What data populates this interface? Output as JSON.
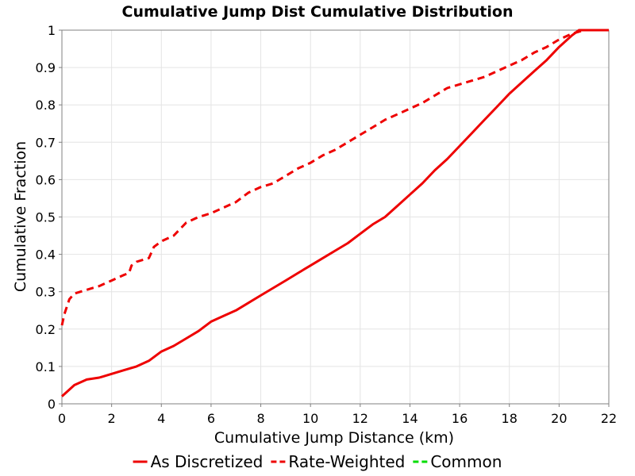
{
  "chart_data": {
    "type": "line",
    "title": "Cumulative Jump Dist Cumulative Distribution",
    "xlabel": "Cumulative Jump Distance (km)",
    "ylabel": "Cumulative Fraction",
    "xlim": [
      0,
      22
    ],
    "ylim": [
      0,
      1
    ],
    "xticks": [
      0,
      2,
      4,
      6,
      8,
      10,
      12,
      14,
      16,
      18,
      20,
      22
    ],
    "yticks": [
      0,
      0.1,
      0.2,
      0.3,
      0.4,
      0.5,
      0.6,
      0.7,
      0.8,
      0.9,
      1
    ],
    "ytick_labels": [
      "0",
      "0.1",
      "0.2",
      "0.3",
      "0.4",
      "0.5",
      "0.6",
      "0.7",
      "0.8",
      "0.9",
      "1"
    ],
    "grid": true,
    "legend_position": "bottom",
    "series": [
      {
        "name": "As Discretized",
        "color": "#ee0000",
        "style": "solid",
        "x": [
          0,
          0.5,
          1,
          1.5,
          2,
          2.5,
          3,
          3.5,
          4,
          4.5,
          5,
          5.5,
          6,
          6.5,
          7,
          7.5,
          8,
          8.5,
          9,
          9.5,
          10,
          10.5,
          11,
          11.5,
          12,
          12.5,
          13,
          13.5,
          14,
          14.5,
          15,
          15.5,
          16,
          16.5,
          17,
          17.5,
          18,
          18.5,
          19,
          19.5,
          20,
          20.5,
          20.8,
          21,
          22
        ],
        "y": [
          0.02,
          0.05,
          0.065,
          0.07,
          0.08,
          0.09,
          0.1,
          0.115,
          0.14,
          0.155,
          0.175,
          0.195,
          0.22,
          0.235,
          0.25,
          0.27,
          0.29,
          0.31,
          0.33,
          0.35,
          0.37,
          0.39,
          0.41,
          0.43,
          0.455,
          0.48,
          0.5,
          0.53,
          0.56,
          0.59,
          0.625,
          0.655,
          0.69,
          0.725,
          0.76,
          0.795,
          0.83,
          0.86,
          0.89,
          0.92,
          0.955,
          0.985,
          1.0,
          1.0,
          1.0
        ]
      },
      {
        "name": "Rate-Weighted",
        "color": "#ee0000",
        "style": "dashed",
        "x": [
          0,
          0.1,
          0.3,
          0.5,
          1,
          1.5,
          2,
          2.5,
          2.7,
          2.8,
          3,
          3.5,
          3.7,
          4,
          4.5,
          5,
          5.5,
          6,
          6.5,
          7,
          7.5,
          8,
          8.5,
          9,
          9.5,
          10,
          10.5,
          11,
          11.5,
          12,
          12.5,
          13,
          13.5,
          14,
          14.5,
          15,
          15.5,
          16,
          16.5,
          17,
          17.5,
          18,
          18.5,
          19,
          19.5,
          20,
          20.5,
          21,
          22
        ],
        "y": [
          0.21,
          0.24,
          0.28,
          0.295,
          0.305,
          0.315,
          0.33,
          0.345,
          0.35,
          0.37,
          0.38,
          0.39,
          0.42,
          0.435,
          0.45,
          0.485,
          0.5,
          0.51,
          0.525,
          0.54,
          0.565,
          0.58,
          0.59,
          0.61,
          0.63,
          0.645,
          0.665,
          0.68,
          0.7,
          0.72,
          0.74,
          0.76,
          0.775,
          0.79,
          0.805,
          0.825,
          0.845,
          0.855,
          0.865,
          0.875,
          0.89,
          0.905,
          0.92,
          0.94,
          0.955,
          0.975,
          0.99,
          1.0,
          1.0
        ]
      },
      {
        "name": "Common",
        "color": "#00dd00",
        "style": "dashed",
        "x": [],
        "y": []
      }
    ]
  }
}
